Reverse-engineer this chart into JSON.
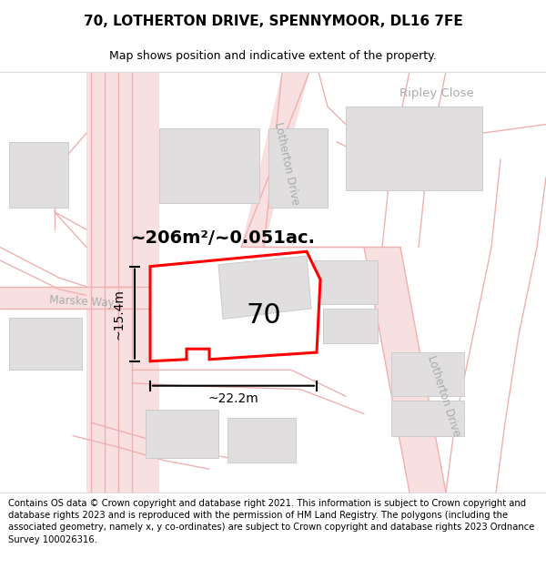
{
  "title": "70, LOTHERTON DRIVE, SPENNYMOOR, DL16 7FE",
  "subtitle": "Map shows position and indicative extent of the property.",
  "footnote": "Contains OS data © Crown copyright and database right 2021. This information is subject to Crown copyright and database rights 2023 and is reproduced with the permission of HM Land Registry. The polygons (including the associated geometry, namely x, y co-ordinates) are subject to Crown copyright and database rights 2023 Ordnance Survey 100026316.",
  "area_label": "~206m²/~0.051ac.",
  "width_label": "~22.2m",
  "height_label": "~15.4m",
  "number_label": "70",
  "road_line_color": "#f0b0b0",
  "road_fill_color": "#f8e0e0",
  "building_face": "#e0dede",
  "building_edge": "#cccccc",
  "plot_color": "#ff0000",
  "title_fontsize": 11,
  "subtitle_fontsize": 9,
  "footnote_fontsize": 7.2,
  "area_fontsize": 14,
  "street_fontsize": 8.5,
  "number_fontsize": 22,
  "dim_fontsize": 10
}
